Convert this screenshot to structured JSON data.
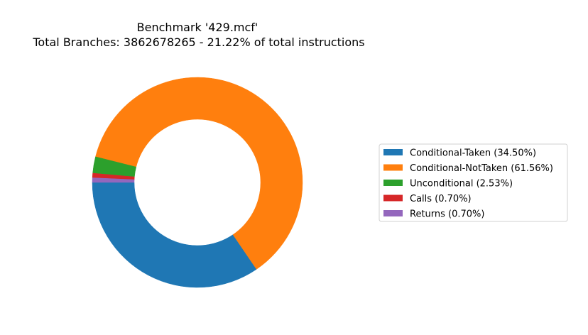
{
  "chart_data": {
    "type": "pie",
    "donut": true,
    "title_lines": [
      "Benchmark '429.mcf'",
      "Total Branches: 3862678265 - 21.22% of total instructions"
    ],
    "start_angle_deg": 180,
    "direction": "counterclockwise",
    "legend_placement": "right",
    "slices": [
      {
        "label": "Conditional-Taken",
        "value": 34.5,
        "color": "#1f77b4",
        "legend_label": "Conditional-Taken (34.50%)"
      },
      {
        "label": "Conditional-NotTaken",
        "value": 61.56,
        "color": "#ff7f0e",
        "legend_label": "Conditional-NotTaken (61.56%)"
      },
      {
        "label": "Unconditional",
        "value": 2.53,
        "color": "#2ca02c",
        "legend_label": "Unconditional (2.53%)"
      },
      {
        "label": "Calls",
        "value": 0.7,
        "color": "#d62728",
        "legend_label": "Calls (0.70%)"
      },
      {
        "label": "Returns",
        "value": 0.7,
        "color": "#9467bd",
        "legend_label": "Returns (0.70%)"
      }
    ]
  }
}
